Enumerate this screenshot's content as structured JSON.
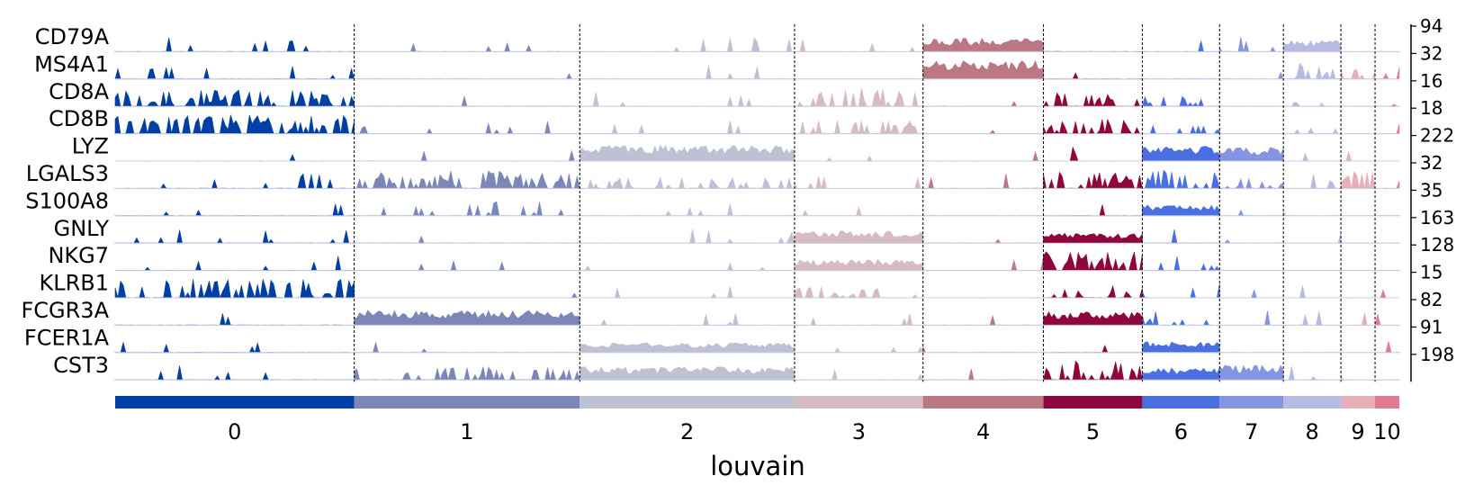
{
  "chart_data": {
    "type": "area",
    "title": "",
    "xlabel": "louvain",
    "ylabel": "",
    "grid": false,
    "legend": "none",
    "clusters": [
      {
        "name": "0",
        "weight": 266,
        "color": "#003fa3"
      },
      {
        "name": "1",
        "weight": 251,
        "color": "#7c87b9"
      },
      {
        "name": "2",
        "weight": 239,
        "color": "#bec1d4"
      },
      {
        "name": "3",
        "weight": 143,
        "color": "#d6bcc0"
      },
      {
        "name": "4",
        "weight": 134,
        "color": "#bb7784"
      },
      {
        "name": "5",
        "weight": 110,
        "color": "#8e063b"
      },
      {
        "name": "6",
        "weight": 86,
        "color": "#4a6fe3"
      },
      {
        "name": "7",
        "weight": 71,
        "color": "#8595e1"
      },
      {
        "name": "8",
        "weight": 64,
        "color": "#b5bbe3"
      },
      {
        "name": "9",
        "weight": 38,
        "color": "#e6afb9"
      },
      {
        "name": "10",
        "weight": 27,
        "color": "#e07b91"
      }
    ],
    "genes": [
      "CD79A",
      "MS4A1",
      "CD8A",
      "CD8B",
      "LYZ",
      "LGALS3",
      "S100A8",
      "GNLY",
      "NKG7",
      "KLRB1",
      "FCGR3A",
      "FCER1A",
      "CST3"
    ],
    "ymax_ticks": [
      "94",
      "32",
      "16",
      "18",
      "222",
      "32",
      "35",
      "163",
      "128",
      "15",
      "82",
      "91",
      "198"
    ],
    "mean_expression": [
      [
        0.05,
        0.03,
        0.03,
        0.03,
        0.55,
        0.05,
        0.02,
        0.03,
        0.45,
        0.1,
        0.05
      ],
      [
        0.04,
        0.02,
        0.02,
        0.02,
        0.75,
        0.04,
        0.02,
        0.02,
        0.3,
        0.2,
        0.05
      ],
      [
        0.3,
        0.02,
        0.03,
        0.35,
        0.04,
        0.25,
        0.2,
        0.02,
        0.12,
        0.05,
        0.15
      ],
      [
        0.35,
        0.03,
        0.03,
        0.25,
        0.04,
        0.3,
        0.15,
        0.02,
        0.1,
        0.05,
        0.05
      ],
      [
        0.02,
        0.06,
        0.65,
        0.02,
        0.02,
        0.06,
        0.6,
        0.55,
        0.05,
        0.04,
        0.03
      ],
      [
        0.12,
        0.35,
        0.2,
        0.04,
        0.05,
        0.3,
        0.35,
        0.2,
        0.1,
        0.35,
        0.05
      ],
      [
        0.03,
        0.12,
        0.05,
        0.02,
        0.02,
        0.05,
        0.45,
        0.03,
        0.03,
        0.03,
        0.02
      ],
      [
        0.08,
        0.03,
        0.02,
        0.5,
        0.03,
        0.4,
        0.12,
        0.02,
        0.02,
        0.02,
        0.02
      ],
      [
        0.08,
        0.02,
        0.02,
        0.45,
        0.02,
        0.35,
        0.1,
        0.02,
        0.02,
        0.02,
        0.02
      ],
      [
        0.35,
        0.02,
        0.02,
        0.2,
        0.02,
        0.25,
        0.05,
        0.02,
        0.02,
        0.02,
        0.02
      ],
      [
        0.03,
        0.6,
        0.03,
        0.05,
        0.02,
        0.55,
        0.1,
        0.02,
        0.02,
        0.02,
        0.02
      ],
      [
        0.02,
        0.02,
        0.4,
        0.02,
        0.02,
        0.02,
        0.45,
        0.03,
        0.02,
        0.02,
        0.05
      ],
      [
        0.04,
        0.25,
        0.55,
        0.03,
        0.02,
        0.35,
        0.5,
        0.6,
        0.05,
        0.03,
        0.03
      ]
    ]
  }
}
